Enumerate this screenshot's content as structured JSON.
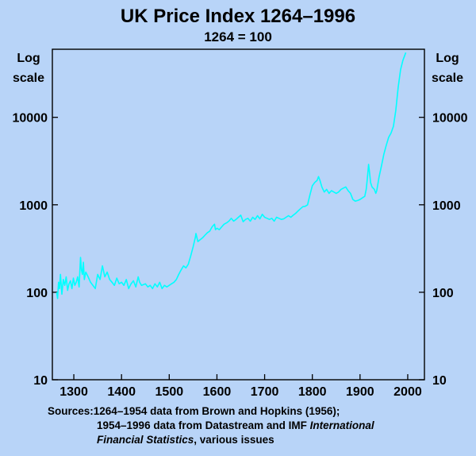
{
  "chart_data": {
    "type": "line",
    "title": "UK Price Index 1264–1996",
    "subtitle": "1264 = 100",
    "ylabel_left": [
      "Log",
      "scale"
    ],
    "ylabel_right": [
      "Log",
      "scale"
    ],
    "yscale": "log",
    "ylim": [
      10,
      60000
    ],
    "xlim": [
      1255,
      2035
    ],
    "y_ticks": [
      10,
      100,
      1000,
      10000
    ],
    "y_tick_labels": [
      "10",
      "100",
      "1000",
      "10000"
    ],
    "x_ticks": [
      1300,
      1400,
      1500,
      1600,
      1700,
      1800,
      1900,
      2000
    ],
    "x_tick_labels": [
      "1300",
      "1400",
      "1500",
      "1600",
      "1700",
      "1800",
      "1900",
      "2000"
    ],
    "line_color": "#00ffff",
    "series": [
      {
        "name": "UK Price Index",
        "x": [
          1264,
          1266,
          1268,
          1270,
          1272,
          1275,
          1278,
          1281,
          1284,
          1287,
          1290,
          1293,
          1296,
          1299,
          1302,
          1305,
          1308,
          1311,
          1314,
          1316,
          1318,
          1320,
          1322,
          1325,
          1330,
          1335,
          1340,
          1345,
          1350,
          1355,
          1360,
          1365,
          1370,
          1375,
          1380,
          1385,
          1390,
          1395,
          1400,
          1405,
          1410,
          1415,
          1420,
          1425,
          1430,
          1435,
          1438,
          1442,
          1450,
          1455,
          1460,
          1465,
          1470,
          1475,
          1480,
          1485,
          1490,
          1495,
          1500,
          1505,
          1510,
          1515,
          1520,
          1525,
          1530,
          1535,
          1540,
          1545,
          1550,
          1555,
          1556,
          1560,
          1565,
          1570,
          1575,
          1580,
          1585,
          1590,
          1595,
          1597,
          1600,
          1605,
          1610,
          1615,
          1620,
          1625,
          1630,
          1635,
          1640,
          1645,
          1650,
          1655,
          1660,
          1665,
          1670,
          1675,
          1680,
          1685,
          1690,
          1695,
          1700,
          1705,
          1710,
          1715,
          1720,
          1725,
          1730,
          1735,
          1740,
          1745,
          1750,
          1755,
          1760,
          1765,
          1770,
          1775,
          1780,
          1785,
          1790,
          1795,
          1800,
          1805,
          1810,
          1813,
          1816,
          1820,
          1825,
          1830,
          1835,
          1840,
          1845,
          1850,
          1855,
          1860,
          1865,
          1870,
          1875,
          1880,
          1885,
          1890,
          1895,
          1900,
          1905,
          1910,
          1913,
          1915,
          1917,
          1918,
          1920,
          1922,
          1925,
          1930,
          1933,
          1935,
          1940,
          1945,
          1950,
          1955,
          1960,
          1965,
          1970,
          1975,
          1980,
          1985,
          1990,
          1996
        ],
        "values": [
          100,
          85,
          130,
          110,
          160,
          95,
          140,
          120,
          150,
          105,
          125,
          135,
          110,
          145,
          120,
          130,
          150,
          115,
          250,
          180,
          160,
          220,
          140,
          170,
          150,
          130,
          120,
          110,
          160,
          140,
          200,
          150,
          170,
          140,
          130,
          120,
          145,
          125,
          130,
          120,
          140,
          110,
          125,
          135,
          115,
          150,
          130,
          120,
          125,
          115,
          120,
          110,
          125,
          115,
          130,
          110,
          120,
          115,
          120,
          125,
          130,
          140,
          160,
          180,
          200,
          190,
          210,
          260,
          330,
          430,
          470,
          380,
          400,
          420,
          450,
          480,
          500,
          560,
          600,
          520,
          540,
          520,
          560,
          600,
          620,
          650,
          700,
          650,
          680,
          720,
          760,
          640,
          680,
          700,
          650,
          720,
          680,
          750,
          690,
          780,
          720,
          700,
          680,
          700,
          650,
          720,
          700,
          680,
          690,
          720,
          750,
          720,
          760,
          800,
          850,
          900,
          950,
          960,
          1000,
          1300,
          1650,
          1800,
          1900,
          2100,
          1900,
          1600,
          1400,
          1500,
          1350,
          1450,
          1400,
          1350,
          1400,
          1500,
          1550,
          1600,
          1450,
          1350,
          1150,
          1100,
          1120,
          1150,
          1200,
          1250,
          1500,
          1900,
          2500,
          2900,
          2300,
          1800,
          1600,
          1500,
          1350,
          1450,
          2100,
          2800,
          3800,
          4800,
          5900,
          6600,
          7900,
          12000,
          22000,
          35000,
          45000,
          55000
        ]
      }
    ],
    "sources": {
      "label": "Sources:",
      "line1": "1264–1954 data from Brown and Hopkins (1956);",
      "line2_plain": "1954–1996 data from Datastream and IMF ",
      "line2_italic": "International",
      "line3_italic": "Financial Statistics",
      "line3_plain": ", various issues"
    }
  }
}
